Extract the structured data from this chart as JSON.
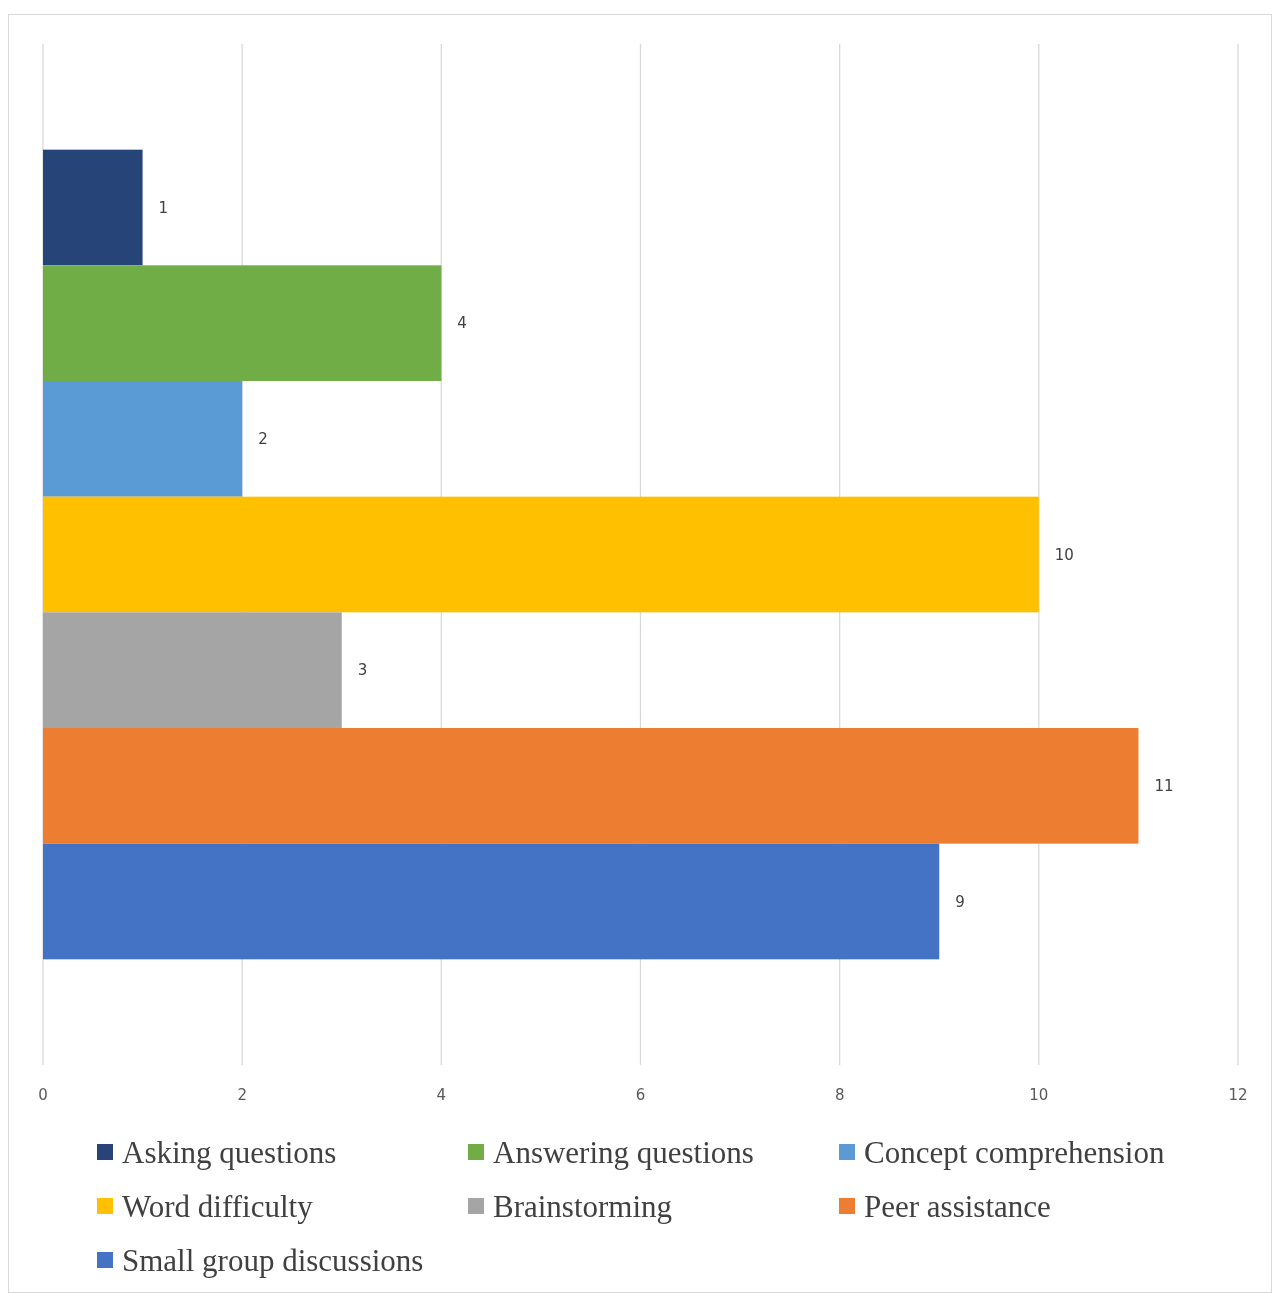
{
  "chart_data": {
    "type": "bar",
    "orientation": "horizontal",
    "categories": [
      null
    ],
    "series": [
      {
        "name": "Asking questions",
        "color": "#264478",
        "values": [
          1
        ]
      },
      {
        "name": "Answering questions",
        "color": "#70ad47",
        "values": [
          4
        ]
      },
      {
        "name": "Concept comprehension",
        "color": "#5b9bd5",
        "values": [
          2
        ]
      },
      {
        "name": "Word difficulty",
        "color": "#ffc000",
        "values": [
          10
        ]
      },
      {
        "name": "Brainstorming",
        "color": "#a5a5a5",
        "values": [
          3
        ]
      },
      {
        "name": "Peer assistance",
        "color": "#ed7d31",
        "values": [
          11
        ]
      },
      {
        "name": "Small group discussions",
        "color": "#4472c4",
        "values": [
          9
        ]
      }
    ],
    "xlim": [
      0,
      12
    ],
    "xticks": [
      0,
      2,
      4,
      6,
      8,
      10,
      12
    ],
    "grid": "x",
    "legend": "bottom",
    "data_labels": true
  }
}
